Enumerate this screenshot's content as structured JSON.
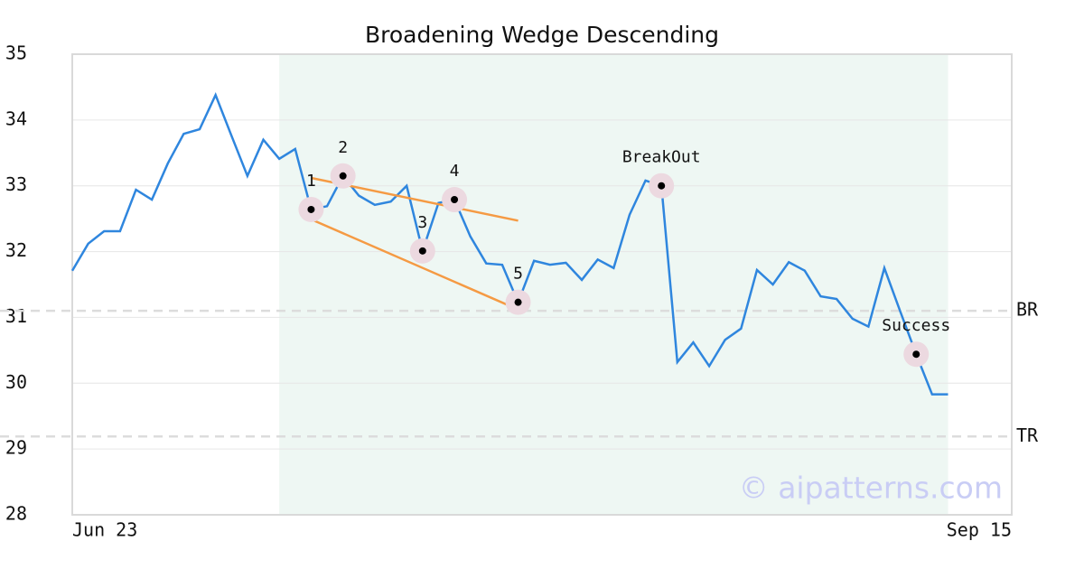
{
  "chart_data": {
    "type": "line",
    "title": "Broadening Wedge Descending",
    "x": [
      0,
      1,
      2,
      3,
      4,
      5,
      6,
      7,
      8,
      9,
      10,
      11,
      12,
      13,
      14,
      15,
      16,
      17,
      18,
      19,
      20,
      21,
      22,
      23,
      24,
      25,
      26,
      27,
      28,
      29,
      30,
      31,
      32,
      33,
      34,
      35,
      36,
      37,
      38,
      39,
      40,
      41,
      42,
      43,
      44,
      45,
      46,
      47,
      48,
      49,
      50,
      51,
      52,
      53,
      54,
      55
    ],
    "series": [
      {
        "color": "#2f86de",
        "values": [
          31.71,
          32.12,
          32.31,
          32.31,
          32.94,
          32.79,
          33.34,
          33.79,
          33.86,
          34.38,
          33.76,
          33.15,
          33.7,
          33.41,
          33.56,
          32.64,
          32.69,
          33.15,
          32.85,
          32.71,
          32.76,
          33.0,
          32.01,
          32.74,
          32.79,
          32.23,
          31.82,
          31.8,
          31.23,
          31.86,
          31.8,
          31.83,
          31.57,
          31.88,
          31.75,
          32.56,
          33.08,
          33.0,
          30.32,
          30.62,
          30.26,
          30.66,
          30.83,
          31.72,
          31.5,
          31.84,
          31.71,
          31.32,
          31.28,
          30.98,
          30.86,
          31.75,
          31.09,
          30.44,
          29.83,
          29.83
        ]
      }
    ],
    "xlim": [
      0,
      59
    ],
    "xticks": [
      {
        "value": 0,
        "label": "Jun 23"
      },
      {
        "value": 59,
        "label": "Sep 15"
      }
    ],
    "ylim": [
      28,
      35
    ],
    "yticks": [
      28,
      29,
      30,
      31,
      32,
      33,
      34,
      35
    ],
    "grid": true,
    "highlight_range": [
      13,
      55
    ],
    "highlight_color": "#eef7f3",
    "annotations": [
      {
        "text": "1",
        "x": 15,
        "y": 32.64
      },
      {
        "text": "2",
        "x": 17,
        "y": 33.15
      },
      {
        "text": "3",
        "x": 22,
        "y": 32.01
      },
      {
        "text": "4",
        "x": 24,
        "y": 32.79
      },
      {
        "text": "5",
        "x": 28,
        "y": 31.23
      },
      {
        "text": "BreakOut",
        "x": 37,
        "y": 33.0
      },
      {
        "text": "Success",
        "x": 53,
        "y": 30.44
      }
    ],
    "trendlines": [
      {
        "x": [
          15,
          28
        ],
        "y": [
          33.12,
          32.47
        ],
        "color": "#f59a43"
      },
      {
        "x": [
          15,
          28
        ],
        "y": [
          32.49,
          31.12
        ],
        "color": "#f59a43"
      }
    ],
    "hlines": [
      {
        "label": "BR",
        "value": 31.1
      },
      {
        "label": "TR",
        "value": 29.19
      }
    ],
    "watermark": "© aipatterns.com"
  }
}
